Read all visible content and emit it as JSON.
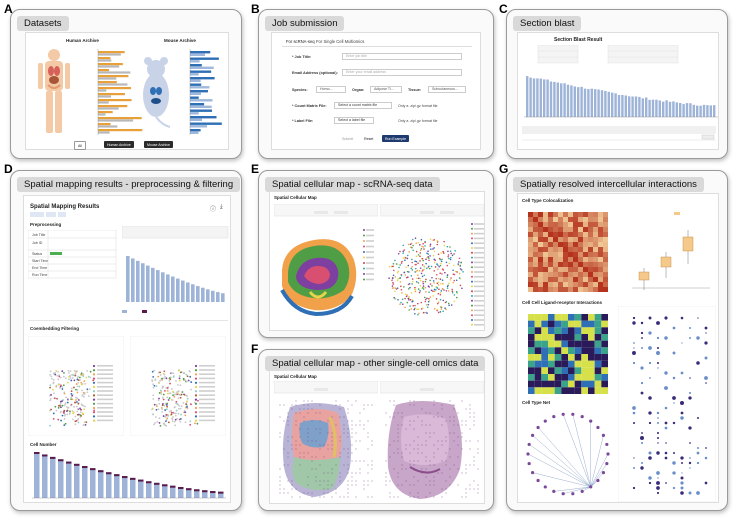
{
  "panels": {
    "a": {
      "letter": "A",
      "title": "Datasets",
      "human_atlas_label": "Human Archive",
      "mouse_atlas_label": "Mouse Archive",
      "buttons": [
        "All",
        "Human Archive",
        "Mouse Archive"
      ],
      "legend_items": [
        "Human",
        "Mouse"
      ],
      "colors": {
        "primary": "#e8a03a",
        "secondary": "#b8b8b8",
        "mouse_primary": "#2e6fb5"
      }
    },
    "b": {
      "letter": "B",
      "title": "Job submission",
      "tabs": [
        "For scRNA-seq",
        "For Single Cell Multiomics"
      ],
      "fields": [
        {
          "label": "* Job Title:",
          "placeholder": "Enter job title"
        },
        {
          "label": "Email Address (optional):",
          "placeholder": "Enter your email address"
        }
      ],
      "species_label": "Species:",
      "species_value": "Homo...",
      "organ_label": "Organ:",
      "organ_value": "Adipose Ti...",
      "tissue_label": "Tissue:",
      "tissue_value": "Subcutaneous...",
      "count_label": "* Count Matrix File:",
      "count_button": "Select a count matrix file",
      "count_hint": "Only a .zip/.gz format file",
      "label_label": "* Label File:",
      "label_button": "Select a label file",
      "label_hint": "Only a .zip/.gz format file",
      "actions": [
        "Submit",
        "Reset",
        "Run Example"
      ]
    },
    "c": {
      "letter": "C",
      "title": "Section blast",
      "result_title": "Section Blast Result",
      "colors": {
        "bars": "#9db3d8"
      }
    },
    "d": {
      "letter": "D",
      "title": "Spatial mapping results - preprocessing & filtering",
      "result_title": "Spatial Mapping Results",
      "preprocessing_label": "Preprocessing",
      "rows": [
        "Job Title",
        "Job ID",
        "Status",
        "Start Time",
        "End Time",
        "Run Time"
      ],
      "filtering_label": "Coembedding Filtering",
      "cell_number_label": "Cell Number",
      "colors": {
        "bars": "#9db3d8",
        "accent": "#5a1a4a"
      }
    },
    "e": {
      "letter": "E",
      "title": "Spatial cellular map - scRNA-seq data",
      "map_label": "Spatial Cellular Map"
    },
    "f": {
      "letter": "F",
      "title": "Spatial cellular map - other single-cell omics data",
      "map_label": "Spatial Cellular Map"
    },
    "g": {
      "letter": "G",
      "title": "Spatially resolved intercellular interactions",
      "cell_type_label": "Cell Type Colocalization",
      "interaction_label": "Cell Cell Ligand-receptor Interactions",
      "cell_type_net_label": "Cell Type Net"
    }
  }
}
